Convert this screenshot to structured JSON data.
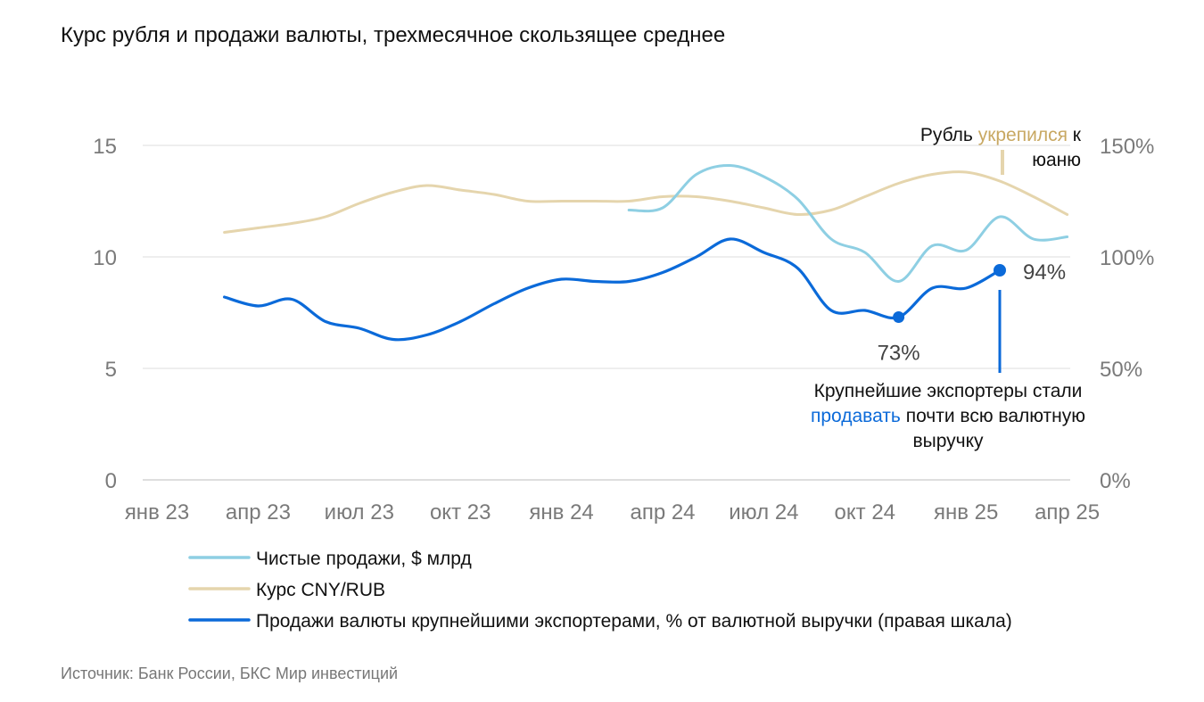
{
  "chart_data": {
    "type": "line",
    "title": "Курс рубля и продажи валюты, трехмесячное скользящее среднее",
    "x_tick_labels": [
      "янв 23",
      "апр 23",
      "июл 23",
      "окт 23",
      "янв 24",
      "апр 24",
      "июл 24",
      "окт 24",
      "янв 25",
      "апр 25"
    ],
    "y_left": {
      "ticks": [
        "0",
        "5",
        "10",
        "15"
      ],
      "ylim": [
        0,
        15
      ]
    },
    "y_right": {
      "ticks": [
        "0%",
        "50%",
        "100%",
        "150%"
      ],
      "ylim": [
        0,
        150
      ]
    },
    "grid": true,
    "legend_position": "bottom",
    "series": [
      {
        "name": "Чистые продажи, $ млрд",
        "axis": "left",
        "color": "#8ecfe3",
        "x": [
          14,
          15,
          16,
          17,
          18,
          19,
          20,
          21,
          22,
          23,
          24,
          25,
          26,
          27
        ],
        "values": [
          12.1,
          12.2,
          13.7,
          14.1,
          13.6,
          12.6,
          10.8,
          10.2,
          8.9,
          10.5,
          10.3,
          11.8,
          10.8,
          10.9
        ]
      },
      {
        "name": "Курс CNY/RUB",
        "axis": "left",
        "color": "#e5d5ad",
        "x": [
          2,
          3,
          4,
          5,
          6,
          7,
          8,
          9,
          10,
          11,
          12,
          13,
          14,
          15,
          16,
          17,
          18,
          19,
          20,
          21,
          22,
          23,
          24,
          25,
          26,
          27
        ],
        "values": [
          11.1,
          11.3,
          11.5,
          11.8,
          12.4,
          12.9,
          13.2,
          13.0,
          12.8,
          12.5,
          12.5,
          12.5,
          12.5,
          12.7,
          12.7,
          12.5,
          12.2,
          11.9,
          12.1,
          12.7,
          13.3,
          13.7,
          13.8,
          13.4,
          12.7,
          11.9
        ]
      },
      {
        "name": "Продажи валюты крупнейшими экспортерами, % от валютной выручки (правая шкала)",
        "axis": "right",
        "color": "#0b6ad9",
        "x": [
          2,
          3,
          4,
          5,
          6,
          7,
          8,
          9,
          10,
          11,
          12,
          13,
          14,
          15,
          16,
          17,
          18,
          19,
          20,
          21,
          22,
          23,
          24,
          25
        ],
        "values": [
          82,
          78,
          81,
          71,
          68,
          63,
          65,
          71,
          79,
          86,
          90,
          89,
          89,
          93,
          100,
          108,
          102,
          95,
          76,
          76,
          73,
          86,
          86,
          94
        ]
      }
    ],
    "annotations": {
      "low_value": "73%",
      "high_value": "94%",
      "ruble_pre": "Рубль ",
      "ruble_hl": "укрепился",
      "ruble_post": " к",
      "ruble_line2": "юаню",
      "exp_line1": "Крупнейшие экспортеры стали",
      "exp_hl": "продавать",
      "exp_post": " почти всю валютную",
      "exp_line3": "выручку"
    },
    "colors": {
      "annotation_gold": "#c8a862",
      "annotation_blue": "#0b6ad9"
    }
  },
  "source": "Источник: Банк России, БКС Мир инвестиций"
}
